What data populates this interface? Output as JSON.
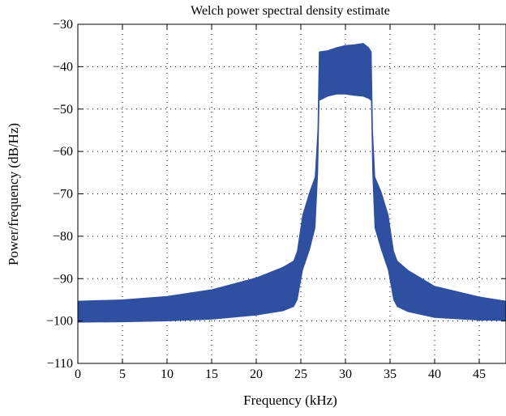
{
  "chart_data": {
    "type": "area",
    "title": "Welch power spectral density estimate",
    "xlabel": "Frequency (kHz)",
    "ylabel": "Power/frequency (dB/Hz)",
    "xlim": [
      0,
      48
    ],
    "ylim": [
      -110,
      -30
    ],
    "xticks": [
      0,
      5,
      10,
      15,
      20,
      25,
      30,
      35,
      40,
      45
    ],
    "yticks": [
      -30,
      -40,
      -50,
      -60,
      -70,
      -80,
      -90,
      -100,
      -110
    ],
    "ytick_labels": [
      "−30",
      "−40",
      "−50",
      "−60",
      "−70",
      "−80",
      "−90",
      "−100",
      "−110"
    ],
    "grid": true,
    "color": "#2f50a0",
    "series": [
      {
        "upper": [
          [
            0,
            -95.3
          ],
          [
            5,
            -95.0
          ],
          [
            10,
            -94.2
          ],
          [
            15,
            -92.6
          ],
          [
            20,
            -89.8
          ],
          [
            23,
            -87.3
          ],
          [
            24.2,
            -85.8
          ],
          [
            24.6,
            -83.5
          ],
          [
            25.2,
            -75
          ],
          [
            26,
            -69.5
          ],
          [
            26.6,
            -66
          ],
          [
            26.9,
            -55
          ],
          [
            27.05,
            -36.5
          ],
          [
            28,
            -36.2
          ],
          [
            29,
            -35.5
          ],
          [
            30,
            -35
          ],
          [
            31,
            -34.8
          ],
          [
            32,
            -34.5
          ],
          [
            32.6,
            -35.5
          ],
          [
            32.9,
            -36.5
          ],
          [
            33.05,
            -55
          ],
          [
            33.3,
            -66
          ],
          [
            34,
            -69.5
          ],
          [
            34.8,
            -75
          ],
          [
            35.4,
            -83.5
          ],
          [
            35.8,
            -85.8
          ],
          [
            37,
            -88
          ],
          [
            40,
            -91.8
          ],
          [
            45,
            -94.3
          ],
          [
            48,
            -95.3
          ]
        ],
        "lower": [
          [
            0,
            -100.3
          ],
          [
            5,
            -100.2
          ],
          [
            10,
            -100.0
          ],
          [
            15,
            -99.6
          ],
          [
            20,
            -98.6
          ],
          [
            23,
            -97.6
          ],
          [
            24.2,
            -96.6
          ],
          [
            24.6,
            -95
          ],
          [
            25.2,
            -88
          ],
          [
            26,
            -83
          ],
          [
            26.6,
            -78
          ],
          [
            26.9,
            -65
          ],
          [
            27.05,
            -48
          ],
          [
            28,
            -47
          ],
          [
            29,
            -46.5
          ],
          [
            30,
            -46.5
          ],
          [
            31,
            -46.8
          ],
          [
            32,
            -47
          ],
          [
            32.6,
            -47.5
          ],
          [
            32.9,
            -48
          ],
          [
            33.05,
            -65
          ],
          [
            33.3,
            -78
          ],
          [
            34,
            -83
          ],
          [
            34.8,
            -88
          ],
          [
            35.4,
            -95
          ],
          [
            35.8,
            -96.6
          ],
          [
            37,
            -97.8
          ],
          [
            40,
            -99.2
          ],
          [
            45,
            -99.8
          ],
          [
            48,
            -99.9
          ]
        ]
      }
    ]
  }
}
